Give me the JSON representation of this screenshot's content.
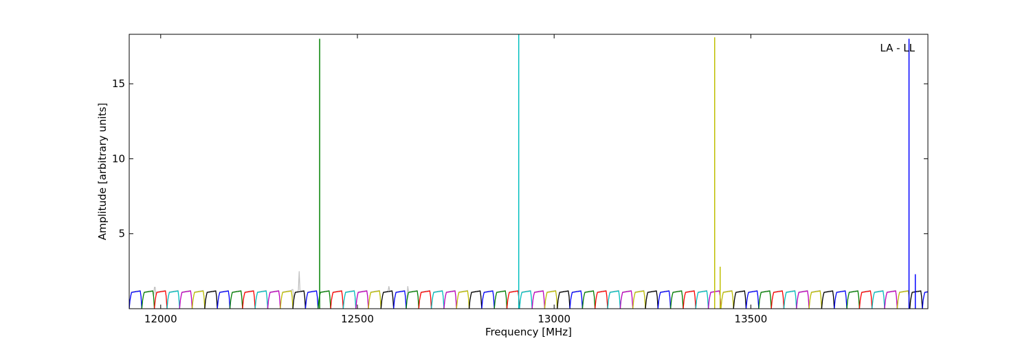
{
  "chart_data": {
    "type": "line",
    "title": "",
    "xlabel": "Frequency [MHz]",
    "ylabel": "Amplitude [arbitrary units]",
    "annotation": "LA - LL",
    "xlim": [
      11920,
      13950
    ],
    "ylim": [
      0,
      18.3
    ],
    "x_ticks": [
      12000,
      12500,
      13000,
      13500
    ],
    "x_tick_labels": [
      "12000",
      "12500",
      "13000",
      "13500"
    ],
    "y_ticks": [
      5,
      10,
      15
    ],
    "y_tick_labels": [
      "5",
      "10",
      "15"
    ],
    "grid": false,
    "legend": "none",
    "channel_width_mhz": 32,
    "channel_colors": [
      "#0000ff",
      "#008000",
      "#ff0000",
      "#00bfbf",
      "#bf00bf",
      "#bfbf00",
      "#000000"
    ],
    "background_color": "#bfbfbf",
    "typical_channel_level": 1.2,
    "spikes": [
      {
        "x": 12404,
        "y": 18.0,
        "color": "#008000"
      },
      {
        "x": 12910,
        "y": 18.3,
        "color": "#00bfbf"
      },
      {
        "x": 13408,
        "y": 18.1,
        "color": "#bfbf00"
      },
      {
        "x": 13422,
        "y": 2.8,
        "color": "#bfbf00"
      },
      {
        "x": 13902,
        "y": 18.0,
        "color": "#0000ff"
      },
      {
        "x": 13918,
        "y": 2.3,
        "color": "#0000ff"
      }
    ],
    "background_bumps": [
      {
        "x": 11985,
        "y": 1.9
      },
      {
        "x": 12335,
        "y": 1.7
      },
      {
        "x": 12352,
        "y": 2.5
      },
      {
        "x": 12580,
        "y": 1.5
      },
      {
        "x": 12628,
        "y": 1.5
      }
    ]
  }
}
